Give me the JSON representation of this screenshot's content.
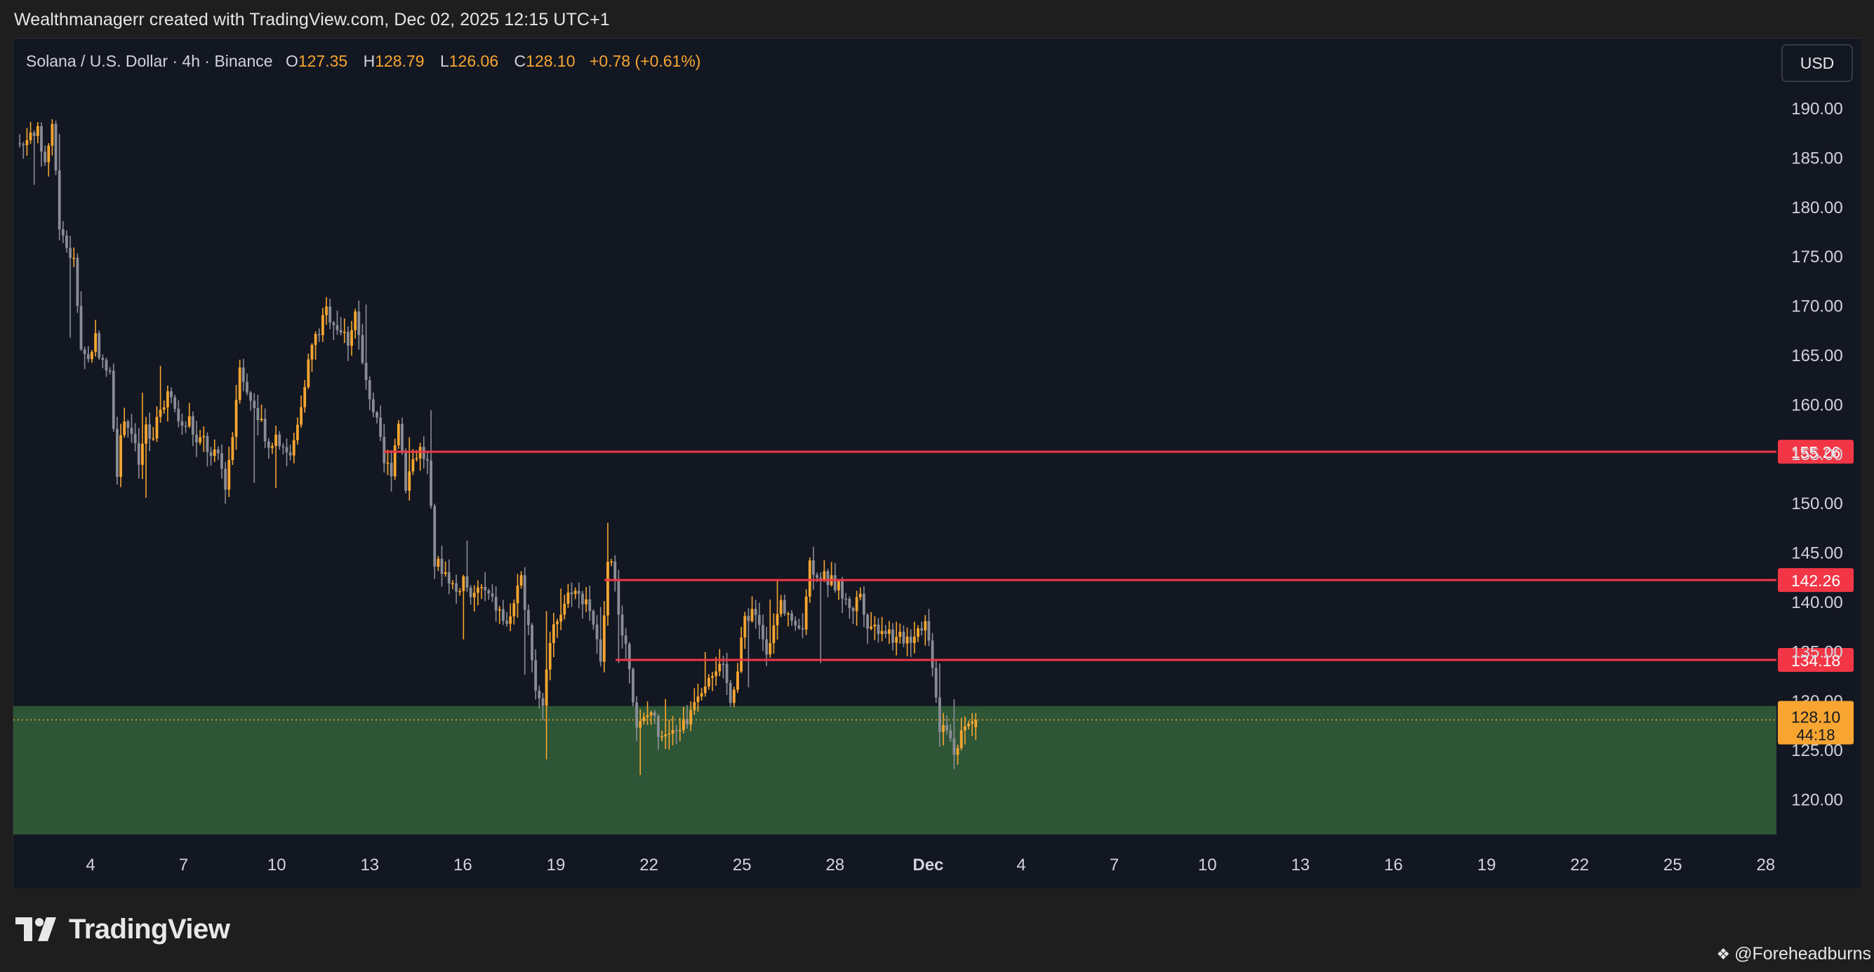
{
  "header": {
    "title": "Wealthmanagerr created with TradingView.com, Dec 02, 2025 12:15 UTC+1"
  },
  "legend": {
    "symbol": "Solana / U.S. Dollar · 4h · Binance",
    "open_label": "O",
    "open": "127.35",
    "high_label": "H",
    "high": "128.79",
    "low_label": "L",
    "low": "126.06",
    "close_label": "C",
    "close": "128.10",
    "change": "+0.78 (+0.61%)"
  },
  "currency_button": "USD",
  "price_badge": {
    "price": "128.10",
    "countdown": "44:18"
  },
  "footer": {
    "brand": "TradingView",
    "credit": "@Foreheadburns"
  },
  "colors": {
    "background": "#131722",
    "up": "#f7a530",
    "down": "#8a8d96",
    "level_line": "#f23645",
    "zone": "#2d5536",
    "accent": "#f7a530"
  },
  "chart_data": {
    "type": "candlestick",
    "symbol": "SOL/USD",
    "interval": "4h",
    "ylim": [
      115,
      193
    ],
    "y_ticks": [
      "190.00",
      "185.00",
      "180.00",
      "175.00",
      "170.00",
      "165.00",
      "160.00",
      "155.00",
      "150.00",
      "145.00",
      "140.00",
      "135.00",
      "130.00",
      "125.00",
      "120.00"
    ],
    "x_ticks": [
      "4",
      "7",
      "10",
      "13",
      "16",
      "19",
      "22",
      "25",
      "28",
      "Dec",
      "4",
      "7",
      "10",
      "13",
      "16",
      "19",
      "22",
      "25",
      "28"
    ],
    "horizontal_levels": [
      {
        "value": 155.26,
        "label": "155.26"
      },
      {
        "value": 142.26,
        "label": "142.26"
      },
      {
        "value": 134.18,
        "label": "134.18"
      }
    ],
    "zone": {
      "low": 116.5,
      "high": 129.5
    },
    "last_price": 128.1,
    "anchors": [
      [
        0,
        186.5
      ],
      [
        2,
        186.3
      ],
      [
        4,
        188.0
      ],
      [
        6,
        187.5
      ],
      [
        8,
        184.5
      ],
      [
        10,
        188.5
      ],
      [
        12,
        178.5
      ],
      [
        14,
        176
      ],
      [
        16,
        174.5
      ],
      [
        18,
        166
      ],
      [
        20,
        164.5
      ],
      [
        22,
        167
      ],
      [
        24,
        164
      ],
      [
        26,
        163
      ],
      [
        28,
        153.5
      ],
      [
        30,
        159
      ],
      [
        32,
        157
      ],
      [
        34,
        154
      ],
      [
        36,
        157.5
      ],
      [
        38,
        156
      ],
      [
        40,
        160
      ],
      [
        42,
        161
      ],
      [
        44,
        159.5
      ],
      [
        46,
        157.5
      ],
      [
        48,
        158.5
      ],
      [
        50,
        156
      ],
      [
        52,
        156.5
      ],
      [
        54,
        154.5
      ],
      [
        56,
        155
      ],
      [
        58,
        152
      ],
      [
        60,
        157
      ],
      [
        62,
        164.5
      ],
      [
        64,
        161
      ],
      [
        66,
        160
      ],
      [
        68,
        158.5
      ],
      [
        70,
        155.5
      ],
      [
        72,
        157
      ],
      [
        74,
        156
      ],
      [
        76,
        154.5
      ],
      [
        78,
        158
      ],
      [
        80,
        162.5
      ],
      [
        82,
        166
      ],
      [
        84,
        167.5
      ],
      [
        86,
        169.5
      ],
      [
        88,
        168.5
      ],
      [
        90,
        167.5
      ],
      [
        92,
        166.5
      ],
      [
        94,
        169.5
      ],
      [
        96,
        164
      ],
      [
        98,
        161
      ],
      [
        100,
        158
      ],
      [
        102,
        154
      ],
      [
        104,
        153.5
      ],
      [
        106,
        158.5
      ],
      [
        108,
        152
      ],
      [
        110,
        154.5
      ],
      [
        112,
        155.5
      ],
      [
        114,
        154
      ],
      [
        116,
        144
      ],
      [
        118,
        143.5
      ],
      [
        120,
        142.5
      ],
      [
        122,
        141
      ],
      [
        124,
        142.5
      ],
      [
        126,
        140
      ],
      [
        128,
        141.5
      ],
      [
        130,
        141
      ],
      [
        132,
        140
      ],
      [
        134,
        139
      ],
      [
        136,
        137.5
      ],
      [
        138,
        140
      ],
      [
        140,
        142
      ],
      [
        142,
        138
      ],
      [
        144,
        131
      ],
      [
        146,
        130
      ],
      [
        148,
        136.5
      ],
      [
        150,
        138.5
      ],
      [
        152,
        140
      ],
      [
        154,
        141.5
      ],
      [
        156,
        140.5
      ],
      [
        158,
        140.5
      ],
      [
        160,
        138
      ],
      [
        162,
        133.5
      ],
      [
        164,
        144
      ],
      [
        166,
        143
      ],
      [
        168,
        136
      ],
      [
        170,
        134
      ],
      [
        172,
        127
      ],
      [
        174,
        128
      ],
      [
        176,
        129
      ],
      [
        178,
        127
      ],
      [
        180,
        127
      ],
      [
        182,
        126.5
      ],
      [
        184,
        127.5
      ],
      [
        186,
        128
      ],
      [
        188,
        130.5
      ],
      [
        190,
        131.5
      ],
      [
        192,
        133
      ],
      [
        194,
        133.5
      ],
      [
        196,
        133
      ],
      [
        198,
        130.5
      ],
      [
        200,
        133
      ],
      [
        202,
        138.5
      ],
      [
        204,
        139
      ],
      [
        206,
        137.5
      ],
      [
        208,
        135.5
      ],
      [
        210,
        137.5
      ],
      [
        212,
        140
      ],
      [
        214,
        139
      ],
      [
        216,
        137
      ],
      [
        218,
        138
      ],
      [
        220,
        144
      ],
      [
        222,
        143
      ],
      [
        224,
        142.5
      ],
      [
        226,
        142
      ],
      [
        228,
        141.5
      ],
      [
        230,
        140
      ],
      [
        232,
        139.5
      ],
      [
        234,
        141
      ],
      [
        236,
        138
      ],
      [
        238,
        137.5
      ],
      [
        240,
        137.5
      ],
      [
        242,
        137
      ],
      [
        244,
        136
      ],
      [
        246,
        136.5
      ],
      [
        248,
        136.5
      ],
      [
        250,
        137.5
      ],
      [
        252,
        138
      ],
      [
        254,
        134
      ],
      [
        256,
        127.5
      ],
      [
        258,
        127
      ],
      [
        260,
        125
      ],
      [
        262,
        127
      ],
      [
        264,
        127.5
      ],
      [
        266,
        128.1
      ]
    ]
  }
}
